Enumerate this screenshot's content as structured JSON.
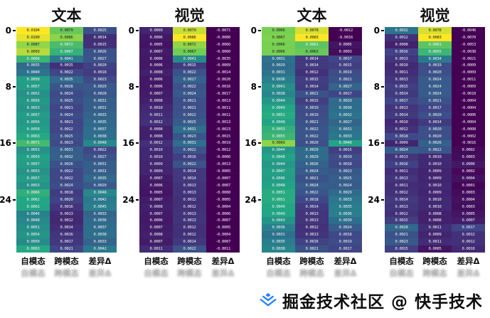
{
  "page": {
    "background": "#ffffff"
  },
  "watermark": {
    "icon": "juejin-gem-icon",
    "text": "掘金技术社区 @ 快手技术",
    "icon_color": "#1e80ff"
  },
  "colors": {
    "viridis_stops": [
      "#440154",
      "#414487",
      "#2a788e",
      "#22a884",
      "#7ad151",
      "#fde725"
    ]
  },
  "chart_data": [
    {
      "type": "heatmap",
      "title": "文本",
      "xlabels": [
        "自模态",
        "跨模态",
        "差异Δ"
      ],
      "yticks": [
        "0",
        "8",
        "16",
        "24"
      ],
      "rows": 32,
      "colormap": "viridis",
      "values": [
        [
          0.0104,
          0.0079,
          0.0025
        ],
        [
          0.01,
          0.0086,
          0.0014
        ],
        [
          0.0087,
          0.0072,
          0.0015
        ],
        [
          0.0093,
          0.0067,
          0.0026
        ],
        [
          0.0068,
          0.0041,
          0.0027
        ],
        [
          0.0035,
          0.0015,
          0.002
        ],
        [
          0.004,
          0.0022,
          0.0018
        ],
        [
          0.0058,
          0.0035,
          0.0023
        ],
        [
          0.0057,
          0.0028,
          0.0029
        ],
        [
          0.0052,
          0.0024,
          0.0028
        ],
        [
          0.0056,
          0.0025,
          0.0031
        ],
        [
          0.0053,
          0.0021,
          0.0031
        ],
        [
          0.0057,
          0.0024,
          0.0033
        ],
        [
          0.0056,
          0.0021,
          0.0035
        ],
        [
          0.0058,
          0.0022,
          0.0037
        ],
        [
          0.0063,
          0.0025,
          0.0038
        ],
        [
          0.0071,
          0.0023,
          0.0048
        ],
        [
          0.0053,
          0.0031,
          0.0022
        ],
        [
          0.0059,
          0.0032,
          0.0027
        ],
        [
          0.0057,
          0.0026,
          0.0031
        ],
        [
          0.0053,
          0.0022,
          0.0031
        ],
        [
          0.0057,
          0.0022,
          0.0035
        ],
        [
          0.0053,
          0.0024,
          0.0029
        ],
        [
          0.0066,
          0.0018,
          0.0048
        ],
        [
          0.0062,
          0.002,
          0.0042
        ],
        [
          0.0061,
          0.0016,
          0.0045
        ],
        [
          0.0046,
          0.0013,
          0.0033
        ],
        [
          0.0048,
          0.0012,
          0.0036
        ],
        [
          0.0051,
          0.0014,
          0.0037
        ],
        [
          0.0054,
          0.0016,
          0.0038
        ],
        [
          0.005,
          0.0017,
          0.0033
        ],
        [
          0.0063,
          0.0021,
          0.0042
        ]
      ]
    },
    {
      "type": "heatmap",
      "title": "视觉",
      "xlabels": [
        "自模态",
        "跨模态",
        "差异Δ"
      ],
      "yticks": [
        "0",
        "8",
        "16",
        "24"
      ],
      "rows": 32,
      "colormap": "viridis",
      "values": [
        [
          0.0009,
          0.0079,
          -0.0071
        ],
        [
          0.0006,
          0.0086,
          -0.008
        ],
        [
          0.0005,
          0.0072,
          -0.0066
        ],
        [
          0.0007,
          0.0067,
          -0.006
        ],
        [
          0.0006,
          0.0041,
          -0.0035
        ],
        [
          0.0006,
          0.0015,
          -0.0009
        ],
        [
          0.0008,
          0.0022,
          -0.0014
        ],
        [
          0.0006,
          0.0027,
          -0.002
        ],
        [
          0.0006,
          0.0022,
          -0.0016
        ],
        [
          0.0007,
          0.0024,
          -0.0017
        ],
        [
          0.0008,
          0.0021,
          -0.0013
        ],
        [
          0.001,
          0.0021,
          -0.0011
        ],
        [
          0.0011,
          0.0022,
          -0.0011
        ],
        [
          0.0012,
          0.0025,
          -0.0013
        ],
        [
          0.0008,
          0.0031,
          -0.0023
        ],
        [
          0.0008,
          0.0023,
          -0.0015
        ],
        [
          0.0012,
          0.0031,
          -0.0019
        ],
        [
          0.001,
          0.0022,
          -0.0012
        ],
        [
          0.001,
          0.0016,
          -0.0006
        ],
        [
          0.0009,
          0.0022,
          -0.0013
        ],
        [
          0.0009,
          0.0014,
          -0.0005
        ],
        [
          0.0007,
          0.0014,
          -0.0007
        ],
        [
          0.0006,
          0.0013,
          -0.0007
        ],
        [
          0.0005,
          0.0013,
          -0.0008
        ],
        [
          0.0007,
          0.0012,
          -0.0005
        ],
        [
          0.0008,
          0.0012,
          -0.0004
        ],
        [
          0.0007,
          0.0013,
          -0.0006
        ],
        [
          0.0006,
          0.0013,
          -0.0007
        ],
        [
          0.0007,
          0.0012,
          -0.0005
        ],
        [
          0.0008,
          0.0012,
          -0.0004
        ],
        [
          0.0007,
          0.0014,
          -0.0007
        ],
        [
          0.0011,
          0.0022,
          -0.0011
        ]
      ]
    },
    {
      "type": "heatmap",
      "title": "文本",
      "xlabels": [
        "自模态",
        "跨模态",
        "差异Δ"
      ],
      "yticks": [
        "0",
        "8",
        "16",
        "24"
      ],
      "rows": 32,
      "colormap": "viridis",
      "values": [
        [
          0.0066,
          0.0078,
          -0.0012
        ],
        [
          0.0067,
          0.0083,
          -0.0016
        ],
        [
          0.0066,
          0.0061,
          0.0005
        ],
        [
          0.0066,
          0.0063,
          0.0003
        ],
        [
          0.0031,
          0.0014,
          0.0017
        ],
        [
          0.0029,
          0.0014,
          0.0015
        ],
        [
          0.0031,
          0.0012,
          0.0019
        ],
        [
          0.0036,
          0.0015,
          0.0021
        ],
        [
          0.0041,
          0.0014,
          0.0027
        ],
        [
          0.0038,
          0.0021,
          0.0017
        ],
        [
          0.0044,
          0.0015,
          0.0029
        ],
        [
          0.0049,
          0.0019,
          0.003
        ],
        [
          0.0051,
          0.0019,
          0.0032
        ],
        [
          0.0048,
          0.0021,
          0.0027
        ],
        [
          0.0053,
          0.0022,
          0.0031
        ],
        [
          0.0055,
          0.0022,
          0.0033
        ],
        [
          0.0069,
          0.002,
          0.0048
        ],
        [
          0.0044,
          0.0029,
          0.0015
        ],
        [
          0.0048,
          0.0029,
          0.0019
        ],
        [
          0.0044,
          0.0026,
          0.0018
        ],
        [
          0.0047,
          0.0024,
          0.0023
        ],
        [
          0.0046,
          0.0021,
          0.0025
        ],
        [
          0.0048,
          0.0024,
          0.0024
        ],
        [
          0.0051,
          0.0022,
          0.0029
        ],
        [
          0.0051,
          0.0018,
          0.0033
        ],
        [
          0.0049,
          0.0014,
          0.0035
        ],
        [
          0.0049,
          0.0013,
          0.0036
        ],
        [
          0.0043,
          0.0013,
          0.003
        ],
        [
          0.0036,
          0.0012,
          0.0024
        ],
        [
          0.0031,
          0.0013,
          0.0018
        ],
        [
          0.0035,
          0.0016,
          0.0019
        ],
        [
          0.0038,
          0.0021,
          0.0017
        ]
      ]
    },
    {
      "type": "heatmap",
      "title": "视觉",
      "xlabels": [
        "自模态",
        "跨模态",
        "差异Δ"
      ],
      "yticks": [
        "0",
        "8",
        "16",
        "24"
      ],
      "rows": 32,
      "colormap": "viridis",
      "values": [
        [
          0.0032,
          0.0078,
          -0.0046
        ],
        [
          0.0012,
          0.0083,
          -0.007
        ],
        [
          0.0008,
          0.0061,
          -0.0053
        ],
        [
          0.0016,
          0.0055,
          -0.0038
        ],
        [
          0.0013,
          0.0034,
          -0.0021
        ],
        [
          0.001,
          0.0019,
          -0.0009
        ],
        [
          0.0011,
          0.002,
          -0.0009
        ],
        [
          0.0013,
          0.0024,
          -0.0011
        ],
        [
          0.0015,
          0.0024,
          -0.0009
        ],
        [
          0.0014,
          0.0024,
          -0.001
        ],
        [
          0.0017,
          0.0021,
          -0.0004
        ],
        [
          0.0013,
          0.0017,
          -0.0004
        ],
        [
          0.0014,
          0.002,
          -0.0006
        ],
        [
          0.001,
          0.0014,
          -0.0004
        ],
        [
          0.0012,
          0.002,
          -0.0008
        ],
        [
          0.0018,
          0.002,
          -0.0002
        ],
        [
          0.0009,
          0.0026,
          -0.0016
        ],
        [
          0.0024,
          0.0022,
          0.0002
        ],
        [
          0.0013,
          0.001,
          0.0003
        ],
        [
          0.0016,
          0.001,
          0.0006
        ],
        [
          0.0011,
          0.0009,
          0.0002
        ],
        [
          0.0013,
          0.0009,
          0.0004
        ],
        [
          0.0011,
          0.001,
          0.0001
        ],
        [
          0.0012,
          0.0009,
          0.0003
        ],
        [
          0.0014,
          0.001,
          0.0004
        ],
        [
          0.0013,
          0.001,
          0.0003
        ],
        [
          0.0012,
          0.0008,
          0.0005
        ],
        [
          0.0015,
          0.0008,
          0.0007
        ],
        [
          0.0028,
          0.0011,
          0.0017
        ],
        [
          0.0021,
          0.0009,
          0.0012
        ],
        [
          0.0023,
          0.0011,
          0.0012
        ],
        [
          0.0015,
          0.0005,
          0.001
        ]
      ]
    }
  ]
}
